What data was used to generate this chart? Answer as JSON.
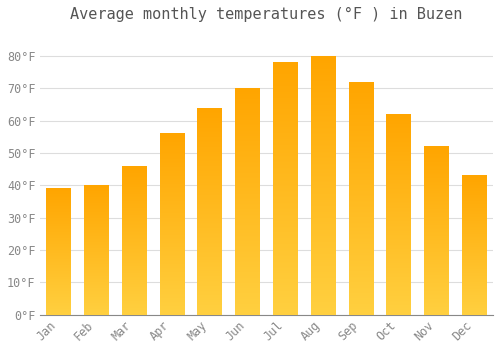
{
  "title": "Average monthly temperatures (°F ) in Buzen",
  "months": [
    "Jan",
    "Feb",
    "Mar",
    "Apr",
    "May",
    "Jun",
    "Jul",
    "Aug",
    "Sep",
    "Oct",
    "Nov",
    "Dec"
  ],
  "values": [
    39,
    40,
    46,
    56,
    64,
    70,
    78,
    80,
    72,
    62,
    52,
    43
  ],
  "bar_color_bottom": "#FFD040",
  "bar_color_top": "#FFA500",
  "yticks": [
    0,
    10,
    20,
    30,
    40,
    50,
    60,
    70,
    80
  ],
  "ytick_labels": [
    "0°F",
    "10°F",
    "20°F",
    "30°F",
    "40°F",
    "50°F",
    "60°F",
    "70°F",
    "80°F"
  ],
  "ylim": [
    0,
    88
  ],
  "background_color": "#ffffff",
  "grid_color": "#dddddd",
  "title_fontsize": 11,
  "tick_fontsize": 8.5,
  "bar_width": 0.65
}
